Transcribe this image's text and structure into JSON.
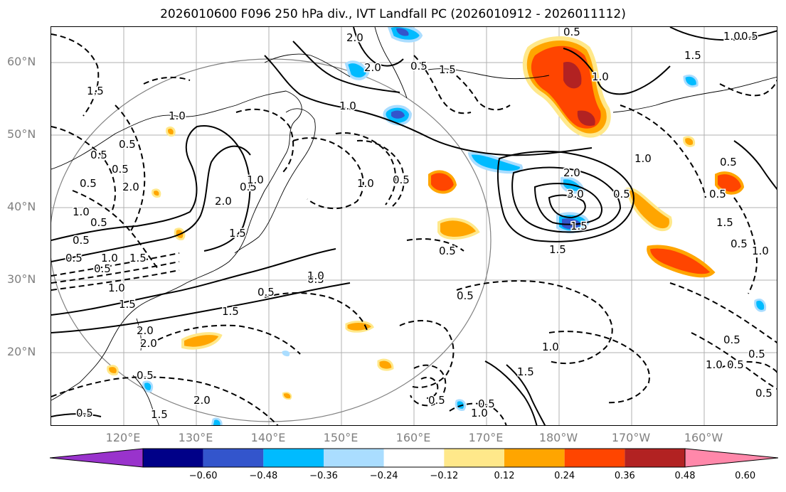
{
  "title": "2026010600 F096 250 hPa div., IVT Landfall PC (2026010912 - 2026011112)",
  "lat_labels": [
    "60°N",
    "50°N",
    "40°N",
    "30°N",
    "20°N"
  ],
  "lon_labels": [
    "120°E",
    "130°E",
    "140°E",
    "150°E",
    "160°E",
    "170°E",
    "180°W",
    "170°W",
    "160°W"
  ],
  "colorbar": {
    "ticks": [
      "−0.60",
      "−0.48",
      "−0.36",
      "−0.24",
      "−0.12",
      "0.12",
      "0.24",
      "0.36",
      "0.48",
      "0.60"
    ],
    "colors": [
      "#9933cc",
      "#000088",
      "#3355cc",
      "#00bbff",
      "#aaddff",
      "#ffffff",
      "#ffe88a",
      "#ffa500",
      "#ff4500",
      "#b22222",
      "#ff88aa"
    ]
  },
  "contour_labels": [
    "2.0",
    "0.5",
    "1.0",
    "0.5",
    "1.5",
    "2.0",
    "1.5",
    "1.0",
    "0.5",
    "1.0",
    "1.5",
    "1.0",
    "0.5",
    "0.5",
    "0.5",
    "0.5",
    "2.0",
    "0.5",
    "1.0",
    "0.5",
    "2.0",
    "3.0",
    "1.5",
    "0.5",
    "1.0",
    "0.5",
    "0.5",
    "1.5",
    "0.5",
    "1.0",
    "1.5",
    "0.5",
    "0.5",
    "0.5",
    "1.0",
    "1.5",
    "2.0",
    "2.0",
    "1.5",
    "1.0",
    "0.5",
    "1.0",
    "0.5",
    "0.5",
    "0.5",
    "1.0",
    "0.5",
    "1.5",
    "0.5",
    "0.5",
    "1.0",
    "0.5",
    "1.5",
    "0.5",
    "2.0",
    "2.0",
    "1.0",
    "0.5",
    "0.5",
    "1.5",
    "1.0",
    "1.5",
    "0.5",
    "1.0",
    "0.5"
  ]
}
